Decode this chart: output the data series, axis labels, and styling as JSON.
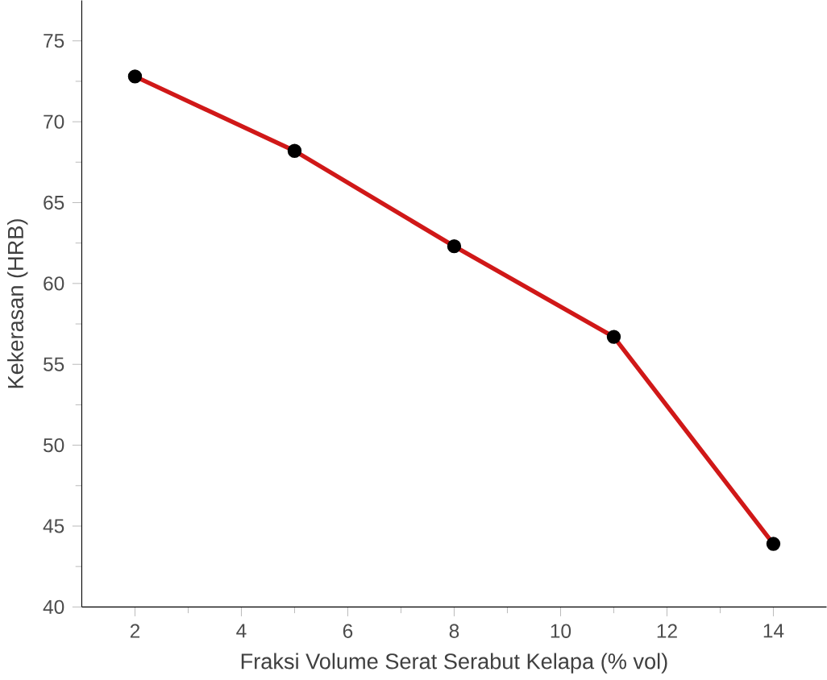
{
  "chart_data": {
    "type": "line",
    "xlabel": "Fraksi Volume Serat Serabut Kelapa (% vol)",
    "ylabel": "Kekerasan (HRB)",
    "x": [
      2,
      5,
      8,
      11,
      14
    ],
    "series": [
      {
        "color": "#d01818",
        "values": [
          72.8,
          68.2,
          62.3,
          56.7,
          43.9
        ]
      }
    ],
    "xlim": [
      1,
      15
    ],
    "ylim": [
      40,
      77.5
    ],
    "xticks": [
      2,
      4,
      6,
      8,
      10,
      12,
      14
    ],
    "yticks": [
      40,
      45,
      50,
      55,
      60,
      65,
      70,
      75
    ],
    "marker": "circle",
    "line_style": "solid",
    "grid": false
  }
}
